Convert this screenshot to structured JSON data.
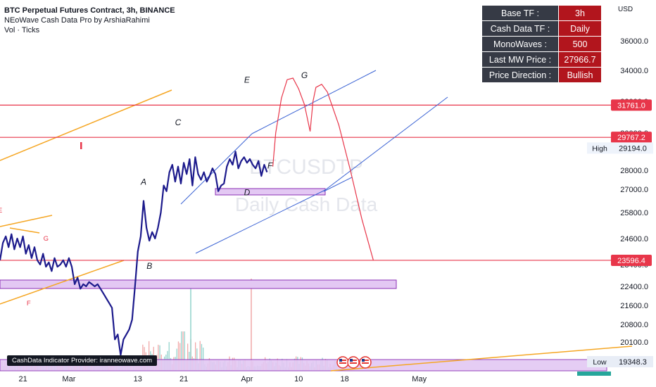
{
  "header": {
    "title": "BTC Perpetual Futures Contract, 3h, BINANCE",
    "indicator": "NEoWave Cash Data Pro by ArshiaRahimi",
    "volume": "Vol · Ticks"
  },
  "watermark": {
    "line1": "BTCUSDTP",
    "line2": "Daily Cash Data"
  },
  "info_table": [
    {
      "key": "Base TF :",
      "value": "3h"
    },
    {
      "key": "Cash Data TF :",
      "value": "Daily"
    },
    {
      "key": "MonoWaves :",
      "value": "500"
    },
    {
      "key": "Last MW Price :",
      "value": "27966.7"
    },
    {
      "key": "Price Direction :",
      "value": "Bullish"
    }
  ],
  "provider_label": "CashData Indicator Provider: iranneowave.com",
  "colors": {
    "price_line": "#1c1a8c",
    "level_line": "#e8364a",
    "badge_red": "#e8364a",
    "projection": "#e8364a",
    "channel": "#3b63d4",
    "trend_orange": "#f5a623",
    "zone_fill": "#e3c8f3",
    "zone_stroke": "#8b2fb5",
    "label_red": "#e8364a"
  },
  "chart_data": {
    "type": "line",
    "title": "BTC Perpetual Futures Contract, 3h, BINANCE",
    "y_axis": {
      "unit_label": "USD",
      "range": [
        19000,
        37000
      ],
      "ticks": [
        "36000.0",
        "34000.0",
        "32000.0",
        "30000.0",
        "28000.0",
        "27000.0",
        "25800.0",
        "24600.0",
        "23400.0",
        "22400.0",
        "21600.0",
        "20800.0",
        "20100.0",
        "19348.3"
      ]
    },
    "x_axis": {
      "labels": [
        "21",
        "Mar",
        "13",
        "21",
        "Apr",
        "10",
        "18",
        "May"
      ],
      "range": [
        "2023-02-17",
        "2023-05-12"
      ]
    },
    "levels": [
      {
        "value": 31761.0,
        "label": "31761.0"
      },
      {
        "value": 29767.2,
        "label": "29767.2"
      },
      {
        "value": 23596.4,
        "label": "23596.4"
      }
    ],
    "markers": [
      {
        "text": "High",
        "value": 29194.0,
        "label": "29194.0"
      },
      {
        "text": "Low",
        "value": 19348.3,
        "label": "19348.3"
      }
    ],
    "wave_labels": [
      {
        "text": "A",
        "x": "2023-03-14",
        "y": 27250
      },
      {
        "text": "B",
        "x": "2023-03-15",
        "y": 23200
      },
      {
        "text": "C",
        "x": "2023-03-20",
        "y": 30500
      },
      {
        "text": "D",
        "x": "2023-04-01",
        "y": 26700
      },
      {
        "text": "E",
        "x": "2023-04-01",
        "y": 33200
      },
      {
        "text": "F",
        "x": "2023-04-05",
        "y": 28100
      },
      {
        "text": "G",
        "x": "2023-04-11",
        "y": 33500
      },
      {
        "text": "E",
        "x": "2023-02-17",
        "y": 25800
      },
      {
        "text": "G",
        "x": "2023-02-25",
        "y": 24500
      },
      {
        "text": "F",
        "x": "2023-02-22",
        "y": 21600
      }
    ],
    "price_series": {
      "name": "",
      "points": [
        [
          "2023-02-17",
          23600
        ],
        [
          "2023-02-17 12:00",
          24400
        ],
        [
          "2023-02-18",
          24700
        ],
        [
          "2023-02-18 12:00",
          24200
        ],
        [
          "2023-02-19",
          24800
        ],
        [
          "2023-02-19 12:00",
          24100
        ],
        [
          "2023-02-20",
          24600
        ],
        [
          "2023-02-20 12:00",
          24200
        ],
        [
          "2023-02-21",
          24700
        ],
        [
          "2023-02-21 12:00",
          23900
        ],
        [
          "2023-02-22",
          24300
        ],
        [
          "2023-02-22 12:00",
          23700
        ],
        [
          "2023-02-23",
          24200
        ],
        [
          "2023-02-23 12:00",
          23600
        ],
        [
          "2023-02-24",
          23400
        ],
        [
          "2023-02-24 12:00",
          23900
        ],
        [
          "2023-02-25",
          23300
        ],
        [
          "2023-02-25 12:00",
          23500
        ],
        [
          "2023-02-26",
          23100
        ],
        [
          "2023-02-26 12:00",
          23700
        ],
        [
          "2023-02-27",
          23300
        ],
        [
          "2023-02-27 12:00",
          23400
        ],
        [
          "2023-02-28",
          23600
        ],
        [
          "2023-02-28 12:00",
          23300
        ],
        [
          "2023-03-01",
          23700
        ],
        [
          "2023-03-01 12:00",
          23300
        ],
        [
          "2023-03-02",
          22500
        ],
        [
          "2023-03-02 12:00",
          22800
        ],
        [
          "2023-03-03",
          22300
        ],
        [
          "2023-03-03 12:00",
          22500
        ],
        [
          "2023-03-04",
          22400
        ],
        [
          "2023-03-04 12:00",
          22600
        ],
        [
          "2023-03-05",
          22500
        ],
        [
          "2023-03-05 12:00",
          22400
        ],
        [
          "2023-03-06",
          22500
        ],
        [
          "2023-03-06 12:00",
          22300
        ],
        [
          "2023-03-07",
          22100
        ],
        [
          "2023-03-07 12:00",
          21900
        ],
        [
          "2023-03-08",
          21700
        ],
        [
          "2023-03-08 12:00",
          21500
        ],
        [
          "2023-03-09",
          20200
        ],
        [
          "2023-03-09 12:00",
          20400
        ],
        [
          "2023-03-10",
          19600
        ],
        [
          "2023-03-10 12:00",
          20200
        ],
        [
          "2023-03-11",
          20400
        ],
        [
          "2023-03-11 12:00",
          20600
        ],
        [
          "2023-03-12",
          21000
        ],
        [
          "2023-03-12 12:00",
          22400
        ],
        [
          "2023-03-13",
          24000
        ],
        [
          "2023-03-13 12:00",
          24700
        ],
        [
          "2023-03-14",
          26400
        ],
        [
          "2023-03-14 12:00",
          25100
        ],
        [
          "2023-03-15",
          24500
        ],
        [
          "2023-03-15 12:00",
          24900
        ],
        [
          "2023-03-16",
          24600
        ],
        [
          "2023-03-16 12:00",
          25100
        ],
        [
          "2023-03-17",
          25800
        ],
        [
          "2023-03-17 12:00",
          27200
        ],
        [
          "2023-03-18",
          26900
        ],
        [
          "2023-03-18 12:00",
          27900
        ],
        [
          "2023-03-19",
          28300
        ],
        [
          "2023-03-19 12:00",
          27400
        ],
        [
          "2023-03-20",
          28200
        ],
        [
          "2023-03-20 12:00",
          27300
        ],
        [
          "2023-03-21",
          28400
        ],
        [
          "2023-03-21 12:00",
          27800
        ],
        [
          "2023-03-22",
          28600
        ],
        [
          "2023-03-22 12:00",
          27200
        ],
        [
          "2023-03-23",
          28700
        ],
        [
          "2023-03-23 12:00",
          27800
        ],
        [
          "2023-03-24",
          27500
        ],
        [
          "2023-03-24 12:00",
          27900
        ],
        [
          "2023-03-25",
          27400
        ],
        [
          "2023-03-25 12:00",
          27700
        ],
        [
          "2023-03-26",
          28100
        ],
        [
          "2023-03-26 12:00",
          27800
        ],
        [
          "2023-03-27",
          26900
        ],
        [
          "2023-03-27 12:00",
          27200
        ],
        [
          "2023-03-28",
          27300
        ],
        [
          "2023-03-28 12:00",
          28200
        ],
        [
          "2023-03-29",
          28600
        ],
        [
          "2023-03-29 12:00",
          28300
        ],
        [
          "2023-03-30",
          29000
        ],
        [
          "2023-03-30 12:00",
          28100
        ],
        [
          "2023-03-31",
          28500
        ],
        [
          "2023-03-31 12:00",
          28700
        ],
        [
          "2023-04-01",
          28400
        ],
        [
          "2023-04-01 12:00",
          28600
        ],
        [
          "2023-04-02",
          28300
        ],
        [
          "2023-04-02 12:00",
          28100
        ],
        [
          "2023-04-03",
          28500
        ],
        [
          "2023-04-03 12:00",
          27700
        ],
        [
          "2023-04-04",
          28300
        ],
        [
          "2023-04-04 12:00",
          27900
        ]
      ]
    },
    "projection_path": [
      [
        "2023-04-05 12:00",
        28200
      ],
      [
        "2023-04-06",
        30000
      ],
      [
        "2023-04-07",
        32200
      ],
      [
        "2023-04-08",
        33400
      ],
      [
        "2023-04-09",
        33500
      ],
      [
        "2023-04-10",
        32800
      ],
      [
        "2023-04-11",
        31800
      ],
      [
        "2023-04-12",
        30100
      ],
      [
        "2023-04-12 12:00",
        32000
      ],
      [
        "2023-04-13",
        32900
      ],
      [
        "2023-04-14",
        33100
      ],
      [
        "2023-04-15",
        32600
      ],
      [
        "2023-04-17",
        30500
      ],
      [
        "2023-04-19",
        28000
      ],
      [
        "2023-04-21",
        25500
      ],
      [
        "2023-04-23",
        23600
      ]
    ]
  }
}
